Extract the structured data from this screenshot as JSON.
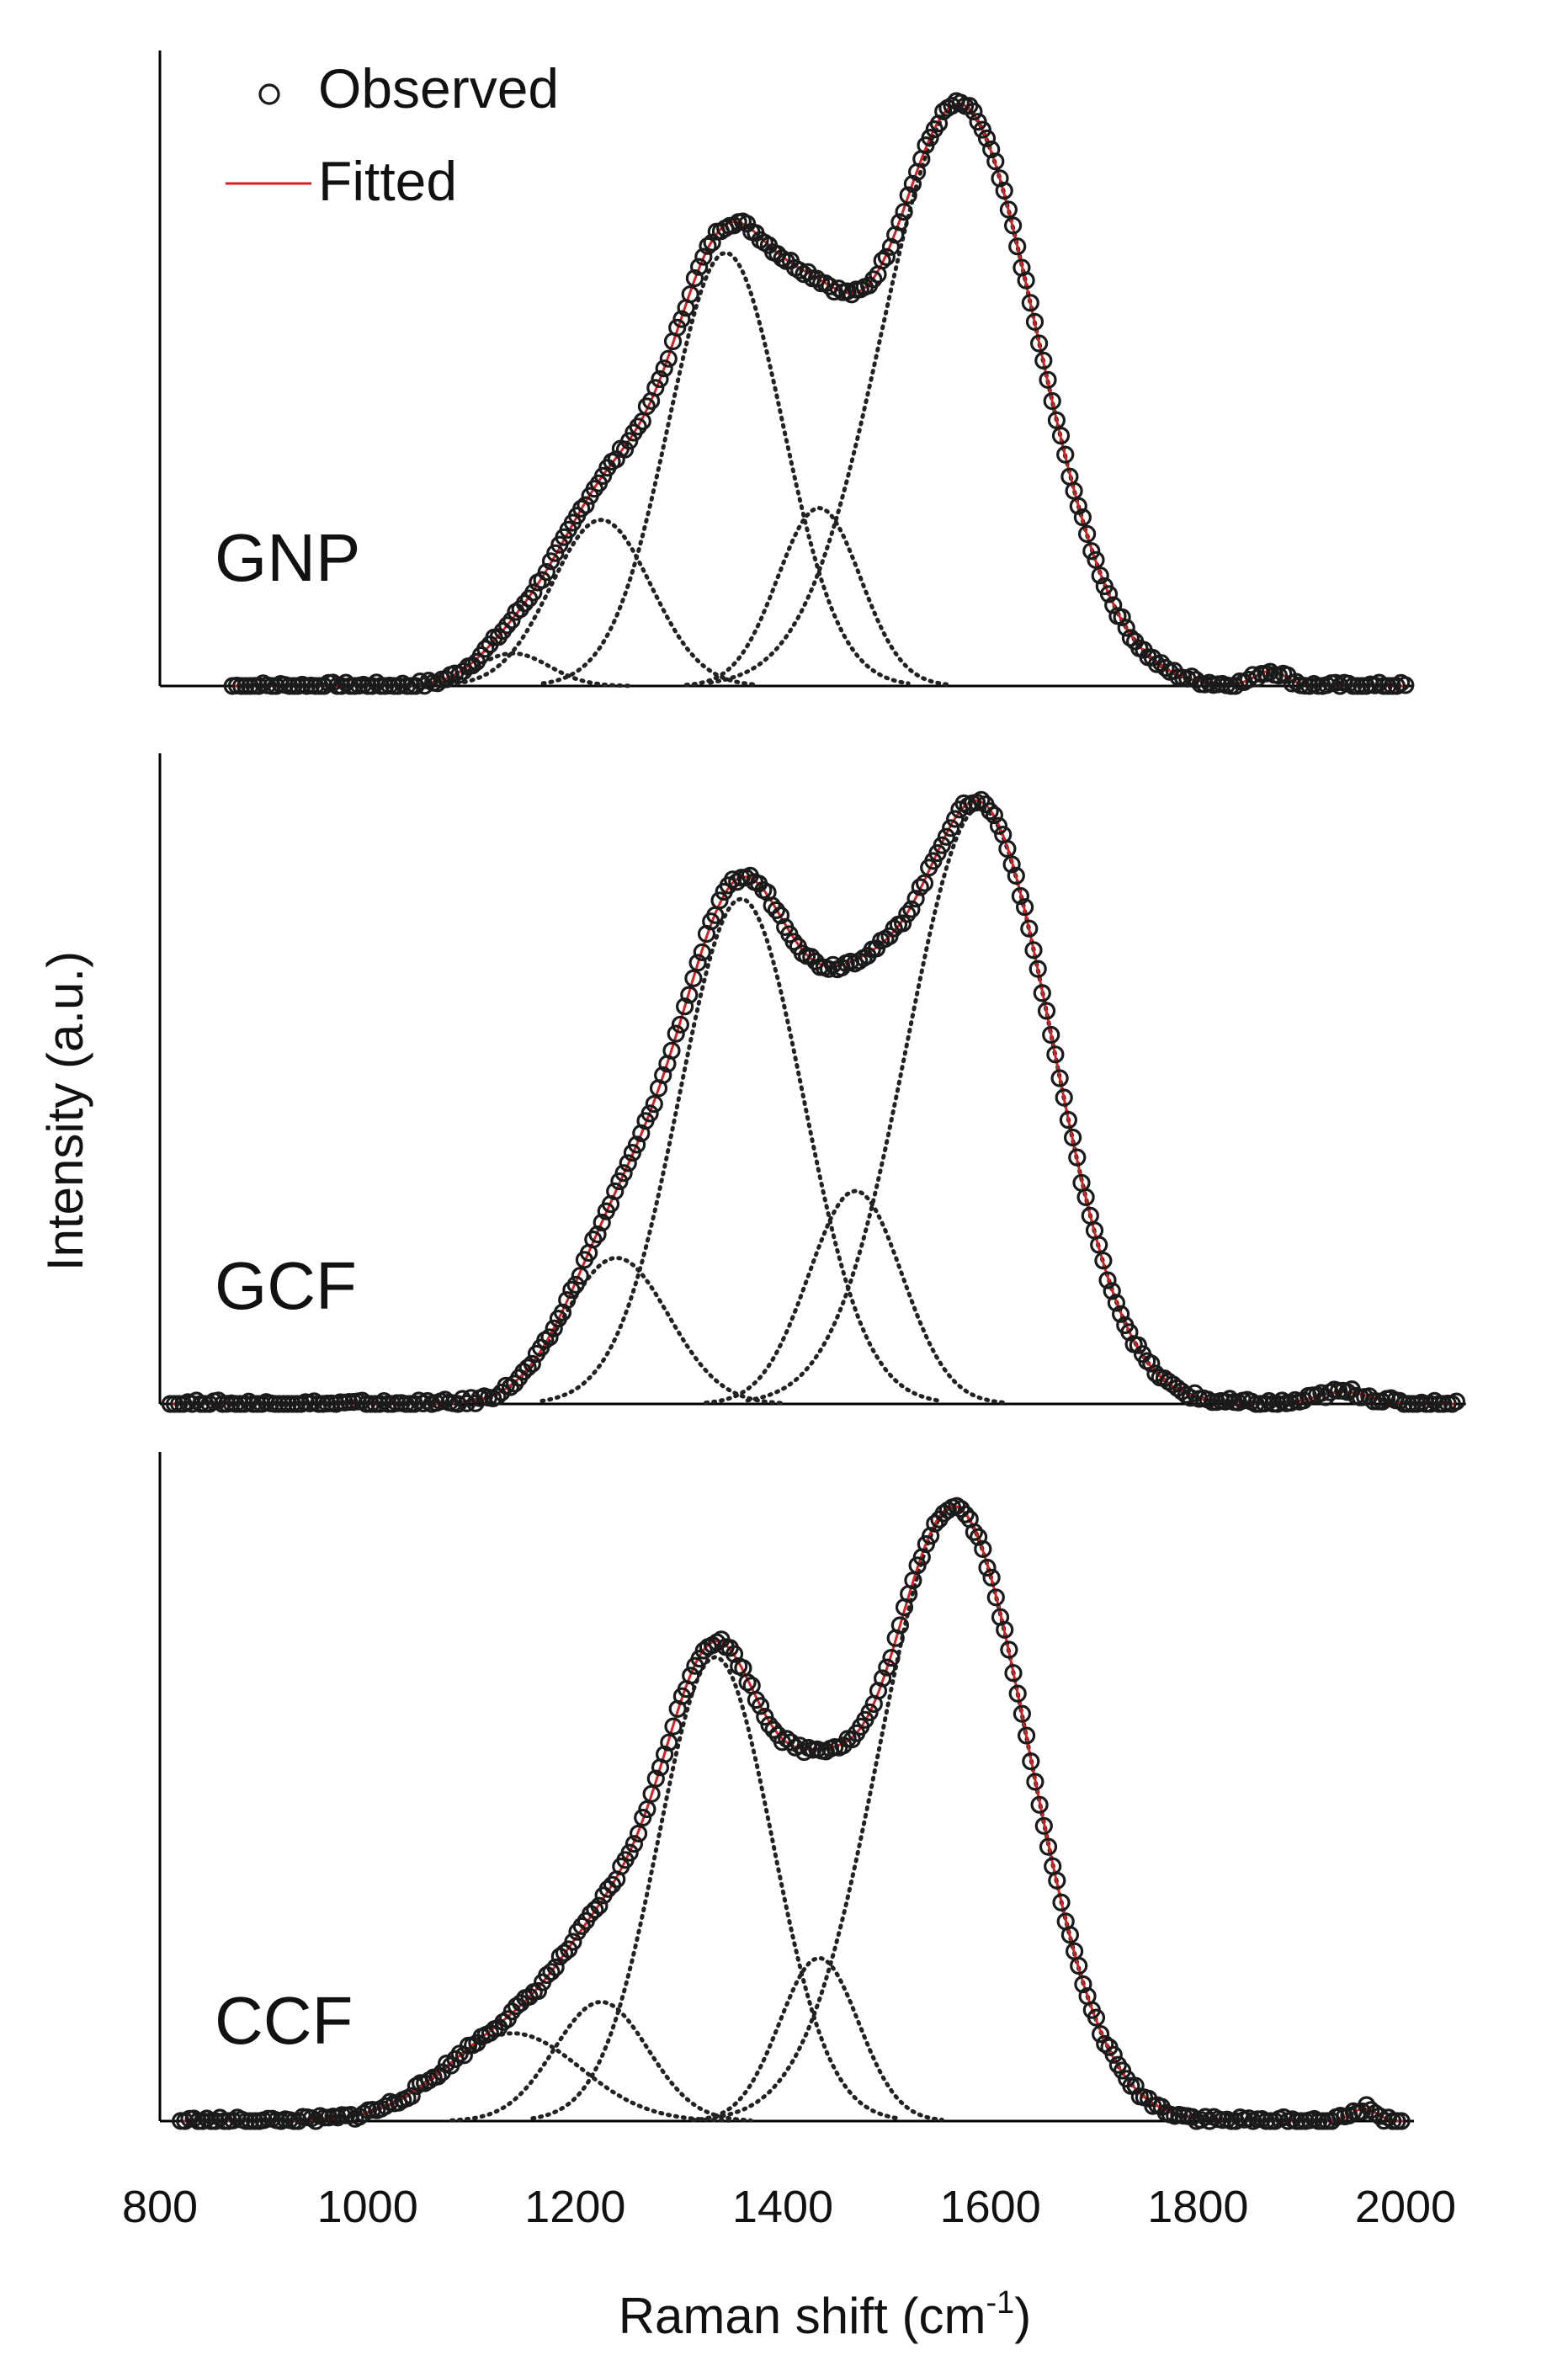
{
  "chart_data": {
    "type": "scatter",
    "title": "",
    "xlabel": "Raman shift (cm",
    "xlabel_superscript": "-1",
    "xlabel_suffix": ")",
    "ylabel": "Intensity (a.u.)",
    "xlim": [
      800,
      2000
    ],
    "xticks": [
      "800",
      "1000",
      "1200",
      "1400",
      "1600",
      "1800",
      "2000"
    ],
    "legend": {
      "position": "top-left",
      "entries": [
        {
          "label": "Observed",
          "marker": "open-circle",
          "color": "#1a1a1a"
        },
        {
          "label": "Fitted",
          "marker": "line",
          "color": "#d62020"
        }
      ]
    },
    "panels": [
      {
        "label": "GNP",
        "x_range": [
          870,
          2000
        ],
        "ymax": 1.0,
        "peaks": [
          {
            "center": 1140,
            "height": 0.055,
            "width": 35
          },
          {
            "center": 1225,
            "height": 0.28,
            "width": 48
          },
          {
            "center": 1345,
            "height": 0.73,
            "width": 55
          },
          {
            "center": 1435,
            "height": 0.3,
            "width": 40
          },
          {
            "center": 1570,
            "height": 0.98,
            "width": 75
          }
        ],
        "extra_features": [
          {
            "center": 1870,
            "height": 0.025,
            "width": 15
          }
        ]
      },
      {
        "label": "GCF",
        "x_range": [
          810,
          2050
        ],
        "ymax": 1.0,
        "peaks": [
          {
            "center": 1240,
            "height": 0.24,
            "width": 50
          },
          {
            "center": 1360,
            "height": 0.83,
            "width": 60
          },
          {
            "center": 1470,
            "height": 0.35,
            "width": 45
          },
          {
            "center": 1590,
            "height": 0.98,
            "width": 70
          }
        ],
        "extra_features": [
          {
            "center": 1940,
            "height": 0.02,
            "width": 25
          }
        ]
      },
      {
        "label": "CCF",
        "x_range": [
          820,
          2000
        ],
        "ymax": 1.0,
        "peaks": [
          {
            "center": 1140,
            "height": 0.14,
            "width": 65
          },
          {
            "center": 1225,
            "height": 0.19,
            "width": 45
          },
          {
            "center": 1335,
            "height": 0.74,
            "width": 55
          },
          {
            "center": 1435,
            "height": 0.26,
            "width": 38
          },
          {
            "center": 1565,
            "height": 0.98,
            "width": 72
          }
        ],
        "extra_features": [
          {
            "center": 1960,
            "height": 0.02,
            "width": 12
          }
        ]
      }
    ]
  }
}
